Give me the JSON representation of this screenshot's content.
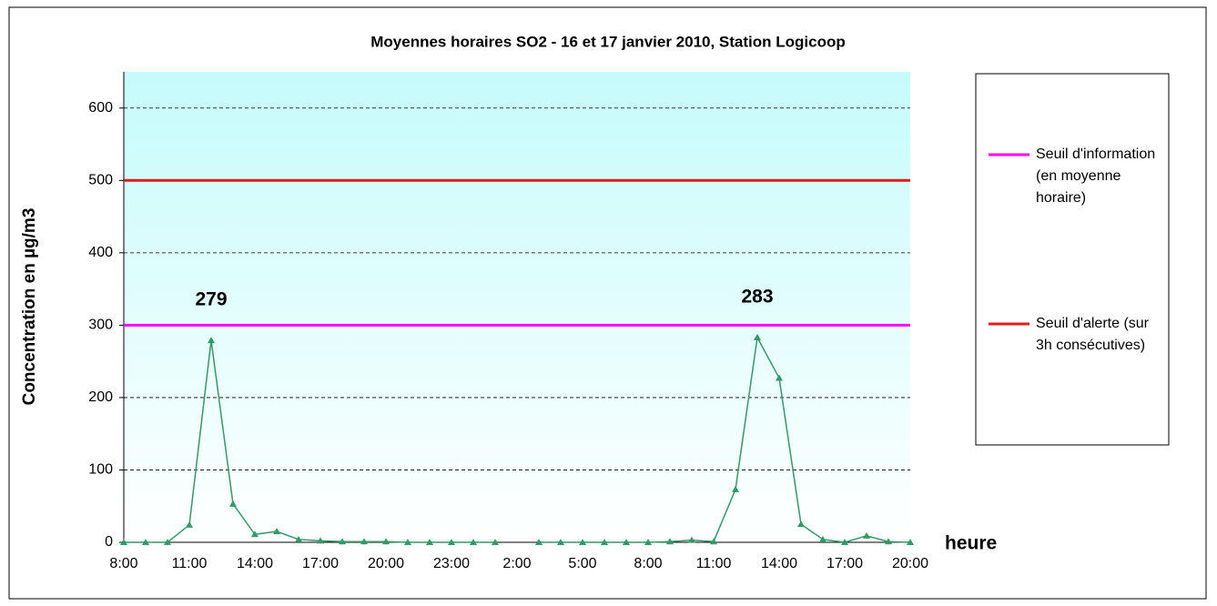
{
  "chart_data": {
    "type": "line",
    "title": "Moyennes horaires SO2 - 16 et 17 janvier 2010, Station Logicoop",
    "y_label": "Concentration en µg/m3",
    "x_label": "heure",
    "categories": [
      "8:00",
      null,
      null,
      "11:00",
      null,
      null,
      "14:00",
      null,
      null,
      "17:00",
      null,
      null,
      "20:00",
      null,
      null,
      "23:00",
      null,
      null,
      "2:00",
      null,
      null,
      "5:00",
      null,
      null,
      "8:00",
      null,
      null,
      "11:00",
      null,
      null,
      "14:00",
      null,
      null,
      "17:00",
      null,
      null,
      "20:00"
    ],
    "series": [
      {
        "color": "#339966",
        "values": [
          0,
          0,
          0,
          24,
          279,
          53,
          11,
          15,
          4,
          2,
          1,
          1,
          1,
          0,
          0,
          0,
          0,
          0,
          null,
          0,
          0,
          0,
          0,
          0,
          0,
          1,
          3,
          1,
          73,
          283,
          227,
          25,
          4,
          0,
          9,
          1,
          0
        ]
      }
    ],
    "thresholds": [
      {
        "name": "Seuil d'information (en moyenne horaire)",
        "color": "#ff00ff",
        "value": 300
      },
      {
        "name": "Seuil d'alerte (sur 3h consécutives)",
        "color": "#e31a1c",
        "value": 500
      }
    ],
    "labeled_points": [
      4,
      29
    ],
    "ylim": [
      0,
      650
    ],
    "yticks": [
      0,
      100,
      200,
      300,
      400,
      500,
      600
    ],
    "grid": true
  }
}
